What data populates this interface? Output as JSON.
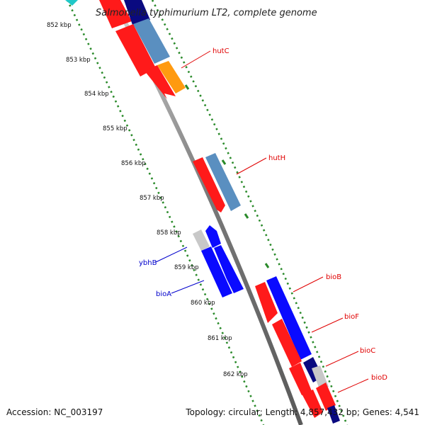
{
  "title": "Salmonella typhimurium LT2, complete genome",
  "accession": "Accession: NC_003197",
  "topology": "Topology: circular; Length: 4,857,432 bp; Genes: 4,541",
  "ticks": [
    {
      "label": "852 kbp"
    },
    {
      "label": "853 kbp"
    },
    {
      "label": "854 kbp"
    },
    {
      "label": "855 kbp"
    },
    {
      "label": "856 kbp"
    },
    {
      "label": "857 kbp"
    },
    {
      "label": "858 kbp"
    },
    {
      "label": "859 kbp"
    },
    {
      "label": "860 kbp"
    },
    {
      "label": "861 kbp"
    },
    {
      "label": "862 kbp"
    }
  ],
  "gene_labels": [
    {
      "name": "hutC",
      "color": "#e00000"
    },
    {
      "name": "hutH",
      "color": "#e00000"
    },
    {
      "name": "ybhB",
      "color": "#0000cc"
    },
    {
      "name": "bioA",
      "color": "#0000cc"
    },
    {
      "name": "bioB",
      "color": "#e00000"
    },
    {
      "name": "bioF",
      "color": "#e00000"
    },
    {
      "name": "bioC",
      "color": "#e00000"
    },
    {
      "name": "bioD",
      "color": "#e00000"
    }
  ],
  "colors": {
    "backbone": "#8a8a8a",
    "tick_dots": "#2a8a2a",
    "cds_red": "#ff1a1a",
    "cds_blue": "#0a0aff",
    "cds_steel": "#5a8fc0",
    "cds_navy": "#0a0a80",
    "cds_orange": "#ff9a10",
    "cds_grey": "#c8c8c8",
    "cds_cyan": "#20c8c8"
  }
}
